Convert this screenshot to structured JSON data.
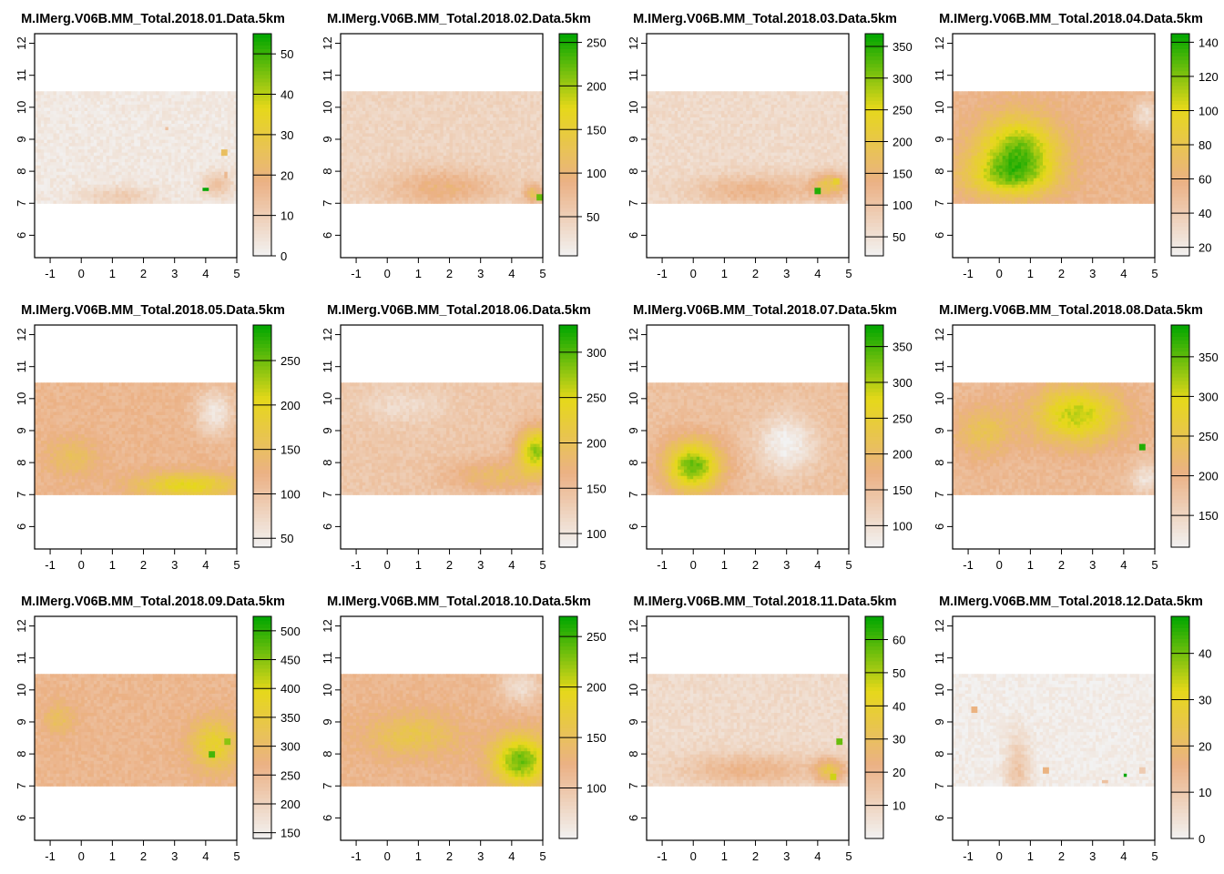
{
  "chart_data": [
    {
      "type": "heatmap",
      "title": "M.IMerg.V06B.MM_Total.2018.01.Data.5km",
      "x_ticks": [
        "-1",
        "0",
        "1",
        "2",
        "3",
        "4",
        "5"
      ],
      "y_ticks": [
        "6",
        "7",
        "8",
        "9",
        "10",
        "11",
        "12"
      ],
      "xlim": [
        -1.5,
        5
      ],
      "ylim": [
        5.3,
        12.3
      ],
      "data_extent": {
        "x": [
          -1.5,
          5
        ],
        "y": [
          7,
          10.5
        ]
      },
      "legend_ticks": [
        "0",
        "10",
        "20",
        "30",
        "40",
        "50"
      ],
      "legend_range": [
        0,
        55
      ],
      "background_level": 0.05,
      "hotspots": [
        {
          "x": 4.0,
          "y": 7.45,
          "level": 1.0
        },
        {
          "x": 4.6,
          "y": 8.6,
          "level": 0.45
        },
        {
          "x": 4.65,
          "y": 7.9,
          "level": 0.3
        },
        {
          "x": 2.75,
          "y": 9.35,
          "level": 0.25
        }
      ],
      "features": [
        {
          "x": 1.2,
          "y": 7.2,
          "sx": 1.2,
          "sy": 0.35,
          "a": 0.15
        },
        {
          "x": 4.4,
          "y": 7.6,
          "sx": 0.5,
          "sy": 0.4,
          "a": 0.2
        }
      ]
    },
    {
      "type": "heatmap",
      "title": "M.IMerg.V06B.MM_Total.2018.02.Data.5km",
      "x_ticks": [
        "-1",
        "0",
        "1",
        "2",
        "3",
        "4",
        "5"
      ],
      "y_ticks": [
        "6",
        "7",
        "8",
        "9",
        "10",
        "11",
        "12"
      ],
      "xlim": [
        -1.5,
        5
      ],
      "ylim": [
        5.3,
        12.3
      ],
      "data_extent": {
        "x": [
          -1.5,
          5
        ],
        "y": [
          7,
          10.5
        ]
      },
      "legend_ticks": [
        "50",
        "100",
        "150",
        "200",
        "250"
      ],
      "legend_range": [
        5,
        260
      ],
      "background_level": 0.15,
      "hotspots": [
        {
          "x": 4.9,
          "y": 7.2,
          "level": 0.85
        }
      ],
      "features": [
        {
          "x": 1.8,
          "y": 7.5,
          "sx": 1.8,
          "sy": 0.6,
          "a": 0.2
        },
        {
          "x": 4.7,
          "y": 7.3,
          "sx": 0.3,
          "sy": 0.3,
          "a": 0.3
        }
      ]
    },
    {
      "type": "heatmap",
      "title": "M.IMerg.V06B.MM_Total.2018.03.Data.5km",
      "x_ticks": [
        "-1",
        "0",
        "1",
        "2",
        "3",
        "4",
        "5"
      ],
      "y_ticks": [
        "6",
        "7",
        "8",
        "9",
        "10",
        "11",
        "12"
      ],
      "xlim": [
        -1.5,
        5
      ],
      "ylim": [
        5.3,
        12.3
      ],
      "data_extent": {
        "x": [
          -1.5,
          5
        ],
        "y": [
          7,
          10.5
        ]
      },
      "legend_ticks": [
        "50",
        "100",
        "150",
        "200",
        "250",
        "300",
        "350"
      ],
      "legend_range": [
        20,
        370
      ],
      "background_level": 0.12,
      "hotspots": [
        {
          "x": 4.0,
          "y": 7.4,
          "level": 0.95
        },
        {
          "x": 4.6,
          "y": 7.7,
          "level": 0.6
        }
      ],
      "features": [
        {
          "x": 2.0,
          "y": 7.4,
          "sx": 2.0,
          "sy": 0.5,
          "a": 0.2
        },
        {
          "x": 4.4,
          "y": 7.6,
          "sx": 0.6,
          "sy": 0.4,
          "a": 0.35
        }
      ]
    },
    {
      "type": "heatmap",
      "title": "M.IMerg.V06B.MM_Total.2018.04.Data.5km",
      "x_ticks": [
        "-1",
        "0",
        "1",
        "2",
        "3",
        "4",
        "5"
      ],
      "y_ticks": [
        "6",
        "7",
        "8",
        "9",
        "10",
        "11",
        "12"
      ],
      "xlim": [
        -1.5,
        5
      ],
      "ylim": [
        5.3,
        12.3
      ],
      "data_extent": {
        "x": [
          -1.5,
          5
        ],
        "y": [
          7,
          10.5
        ]
      },
      "legend_ticks": [
        "20",
        "40",
        "60",
        "80",
        "100",
        "120",
        "140"
      ],
      "legend_range": [
        15,
        145
      ],
      "background_level": 0.3,
      "hotspots": [],
      "features": [
        {
          "x": 0.6,
          "y": 8.6,
          "sx": 1.3,
          "sy": 1.1,
          "a": 0.55
        },
        {
          "x": 0.2,
          "y": 7.8,
          "sx": 1.5,
          "sy": 0.6,
          "a": 0.25
        },
        {
          "x": 4.7,
          "y": 9.8,
          "sx": 0.4,
          "sy": 0.5,
          "a": -0.2
        }
      ]
    },
    {
      "type": "heatmap",
      "title": "M.IMerg.V06B.MM_Total.2018.05.Data.5km",
      "x_ticks": [
        "-1",
        "0",
        "1",
        "2",
        "3",
        "4",
        "5"
      ],
      "y_ticks": [
        "6",
        "7",
        "8",
        "9",
        "10",
        "11",
        "12"
      ],
      "xlim": [
        -1.5,
        5
      ],
      "ylim": [
        5.3,
        12.3
      ],
      "data_extent": {
        "x": [
          -1.5,
          5
        ],
        "y": [
          7,
          10.5
        ]
      },
      "legend_ticks": [
        "50",
        "100",
        "150",
        "200",
        "250"
      ],
      "legend_range": [
        40,
        290
      ],
      "background_level": 0.3,
      "hotspots": [],
      "features": [
        {
          "x": 3.4,
          "y": 7.3,
          "sx": 1.6,
          "sy": 0.4,
          "a": 0.35
        },
        {
          "x": -0.3,
          "y": 8.2,
          "sx": 0.8,
          "sy": 0.6,
          "a": 0.15
        },
        {
          "x": 4.3,
          "y": 9.6,
          "sx": 0.6,
          "sy": 0.7,
          "a": -0.25
        }
      ]
    },
    {
      "type": "heatmap",
      "title": "M.IMerg.V06B.MM_Total.2018.06.Data.5km",
      "x_ticks": [
        "-1",
        "0",
        "1",
        "2",
        "3",
        "4",
        "5"
      ],
      "y_ticks": [
        "6",
        "7",
        "8",
        "9",
        "10",
        "11",
        "12"
      ],
      "xlim": [
        -1.5,
        5
      ],
      "ylim": [
        5.3,
        12.3
      ],
      "data_extent": {
        "x": [
          -1.5,
          5
        ],
        "y": [
          7,
          10.5
        ]
      },
      "legend_ticks": [
        "100",
        "150",
        "200",
        "250",
        "300"
      ],
      "legend_range": [
        85,
        330
      ],
      "background_level": 0.22,
      "hotspots": [],
      "features": [
        {
          "x": 4.8,
          "y": 8.4,
          "sx": 0.6,
          "sy": 0.7,
          "a": 0.55
        },
        {
          "x": 3.5,
          "y": 7.6,
          "sx": 1.5,
          "sy": 0.5,
          "a": 0.2
        },
        {
          "x": 0.5,
          "y": 9.8,
          "sx": 1.5,
          "sy": 0.6,
          "a": -0.1
        }
      ]
    },
    {
      "type": "heatmap",
      "title": "M.IMerg.V06B.MM_Total.2018.07.Data.5km",
      "x_ticks": [
        "-1",
        "0",
        "1",
        "2",
        "3",
        "4",
        "5"
      ],
      "y_ticks": [
        "6",
        "7",
        "8",
        "9",
        "10",
        "11",
        "12"
      ],
      "xlim": [
        -1.5,
        5
      ],
      "ylim": [
        5.3,
        12.3
      ],
      "data_extent": {
        "x": [
          -1.5,
          5
        ],
        "y": [
          7,
          10.5
        ]
      },
      "legend_ticks": [
        "100",
        "150",
        "200",
        "250",
        "300",
        "350"
      ],
      "legend_range": [
        70,
        380
      ],
      "background_level": 0.25,
      "hotspots": [],
      "features": [
        {
          "x": 0.0,
          "y": 7.9,
          "sx": 0.9,
          "sy": 0.8,
          "a": 0.6
        },
        {
          "x": 3.0,
          "y": 8.6,
          "sx": 0.9,
          "sy": 0.9,
          "a": -0.25
        }
      ]
    },
    {
      "type": "heatmap",
      "title": "M.IMerg.V06B.MM_Total.2018.08.Data.5km",
      "x_ticks": [
        "-1",
        "0",
        "1",
        "2",
        "3",
        "4",
        "5"
      ],
      "y_ticks": [
        "6",
        "7",
        "8",
        "9",
        "10",
        "11",
        "12"
      ],
      "xlim": [
        -1.5,
        5
      ],
      "ylim": [
        5.3,
        12.3
      ],
      "data_extent": {
        "x": [
          -1.5,
          5
        ],
        "y": [
          7,
          10.5
        ]
      },
      "legend_ticks": [
        "150",
        "200",
        "250",
        "300",
        "350"
      ],
      "legend_range": [
        110,
        390
      ],
      "background_level": 0.28,
      "hotspots": [
        {
          "x": 4.6,
          "y": 8.5,
          "level": 0.95
        }
      ],
      "features": [
        {
          "x": 2.5,
          "y": 9.5,
          "sx": 1.4,
          "sy": 0.9,
          "a": 0.45
        },
        {
          "x": -0.5,
          "y": 9.0,
          "sx": 0.9,
          "sy": 0.8,
          "a": 0.2
        },
        {
          "x": 4.7,
          "y": 7.5,
          "sx": 0.5,
          "sy": 0.5,
          "a": -0.2
        }
      ]
    },
    {
      "type": "heatmap",
      "title": "M.IMerg.V06B.MM_Total.2018.09.Data.5km",
      "x_ticks": [
        "-1",
        "0",
        "1",
        "2",
        "3",
        "4",
        "5"
      ],
      "y_ticks": [
        "6",
        "7",
        "8",
        "9",
        "10",
        "11",
        "12"
      ],
      "xlim": [
        -1.5,
        5
      ],
      "ylim": [
        5.3,
        12.3
      ],
      "data_extent": {
        "x": [
          -1.5,
          5
        ],
        "y": [
          7,
          10.5
        ]
      },
      "legend_ticks": [
        "150",
        "200",
        "250",
        "300",
        "350",
        "400",
        "450",
        "500"
      ],
      "legend_range": [
        140,
        525
      ],
      "background_level": 0.3,
      "hotspots": [
        {
          "x": 4.2,
          "y": 8.0,
          "level": 0.9
        },
        {
          "x": 4.7,
          "y": 8.4,
          "level": 0.8
        }
      ],
      "features": [
        {
          "x": 4.3,
          "y": 8.3,
          "sx": 0.8,
          "sy": 0.8,
          "a": 0.3
        },
        {
          "x": -0.7,
          "y": 9.1,
          "sx": 0.5,
          "sy": 0.5,
          "a": 0.15
        }
      ]
    },
    {
      "type": "heatmap",
      "title": "M.IMerg.V06B.MM_Total.2018.10.Data.5km",
      "x_ticks": [
        "-1",
        "0",
        "1",
        "2",
        "3",
        "4",
        "5"
      ],
      "y_ticks": [
        "6",
        "7",
        "8",
        "9",
        "10",
        "11",
        "12"
      ],
      "xlim": [
        -1.5,
        5
      ],
      "ylim": [
        5.3,
        12.3
      ],
      "data_extent": {
        "x": [
          -1.5,
          5
        ],
        "y": [
          7,
          10.5
        ]
      },
      "legend_ticks": [
        "100",
        "150",
        "200",
        "250"
      ],
      "legend_range": [
        50,
        270
      ],
      "background_level": 0.3,
      "hotspots": [],
      "features": [
        {
          "x": 4.3,
          "y": 7.8,
          "sx": 0.9,
          "sy": 0.8,
          "a": 0.55
        },
        {
          "x": 0.8,
          "y": 8.6,
          "sx": 1.5,
          "sy": 0.7,
          "a": 0.2
        },
        {
          "x": 4.3,
          "y": 10.1,
          "sx": 0.7,
          "sy": 0.5,
          "a": -0.2
        }
      ]
    },
    {
      "type": "heatmap",
      "title": "M.IMerg.V06B.MM_Total.2018.11.Data.5km",
      "x_ticks": [
        "-1",
        "0",
        "1",
        "2",
        "3",
        "4",
        "5"
      ],
      "y_ticks": [
        "6",
        "7",
        "8",
        "9",
        "10",
        "11",
        "12"
      ],
      "xlim": [
        -1.5,
        5
      ],
      "ylim": [
        5.3,
        12.3
      ],
      "data_extent": {
        "x": [
          -1.5,
          5
        ],
        "y": [
          7,
          10.5
        ]
      },
      "legend_ticks": [
        "10",
        "20",
        "30",
        "40",
        "50",
        "60"
      ],
      "legend_range": [
        0,
        67
      ],
      "background_level": 0.12,
      "hotspots": [
        {
          "x": 4.7,
          "y": 8.4,
          "level": 0.85
        },
        {
          "x": 4.5,
          "y": 7.3,
          "level": 0.7
        }
      ],
      "features": [
        {
          "x": 1.8,
          "y": 7.5,
          "sx": 2.2,
          "sy": 0.5,
          "a": 0.2
        },
        {
          "x": 4.4,
          "y": 7.5,
          "sx": 0.5,
          "sy": 0.4,
          "a": 0.35
        }
      ]
    },
    {
      "type": "heatmap",
      "title": "M.IMerg.V06B.MM_Total.2018.12.Data.5km",
      "x_ticks": [
        "-1",
        "0",
        "1",
        "2",
        "3",
        "4",
        "5"
      ],
      "y_ticks": [
        "6",
        "7",
        "8",
        "9",
        "10",
        "11",
        "12"
      ],
      "xlim": [
        -1.5,
        5
      ],
      "ylim": [
        5.3,
        12.3
      ],
      "data_extent": {
        "x": [
          -1.5,
          5
        ],
        "y": [
          7,
          10.5
        ]
      },
      "legend_ticks": [
        "0",
        "10",
        "20",
        "30",
        "40"
      ],
      "legend_range": [
        0,
        48
      ],
      "background_level": 0.03,
      "hotspots": [
        {
          "x": 4.05,
          "y": 7.35,
          "level": 1.0
        },
        {
          "x": 1.5,
          "y": 7.5,
          "level": 0.35
        },
        {
          "x": -0.8,
          "y": 9.4,
          "level": 0.35
        },
        {
          "x": 3.4,
          "y": 7.15,
          "level": 0.25
        },
        {
          "x": 4.6,
          "y": 7.5,
          "level": 0.2
        }
      ],
      "features": [
        {
          "x": 0.6,
          "y": 7.5,
          "sx": 0.4,
          "sy": 1.1,
          "a": 0.2
        }
      ]
    }
  ],
  "colors": {
    "low": "#f2f2f2",
    "mid_low": "#ebb185",
    "mid": "#e6d81a",
    "high": "#00a600",
    "frame": "#000000"
  }
}
